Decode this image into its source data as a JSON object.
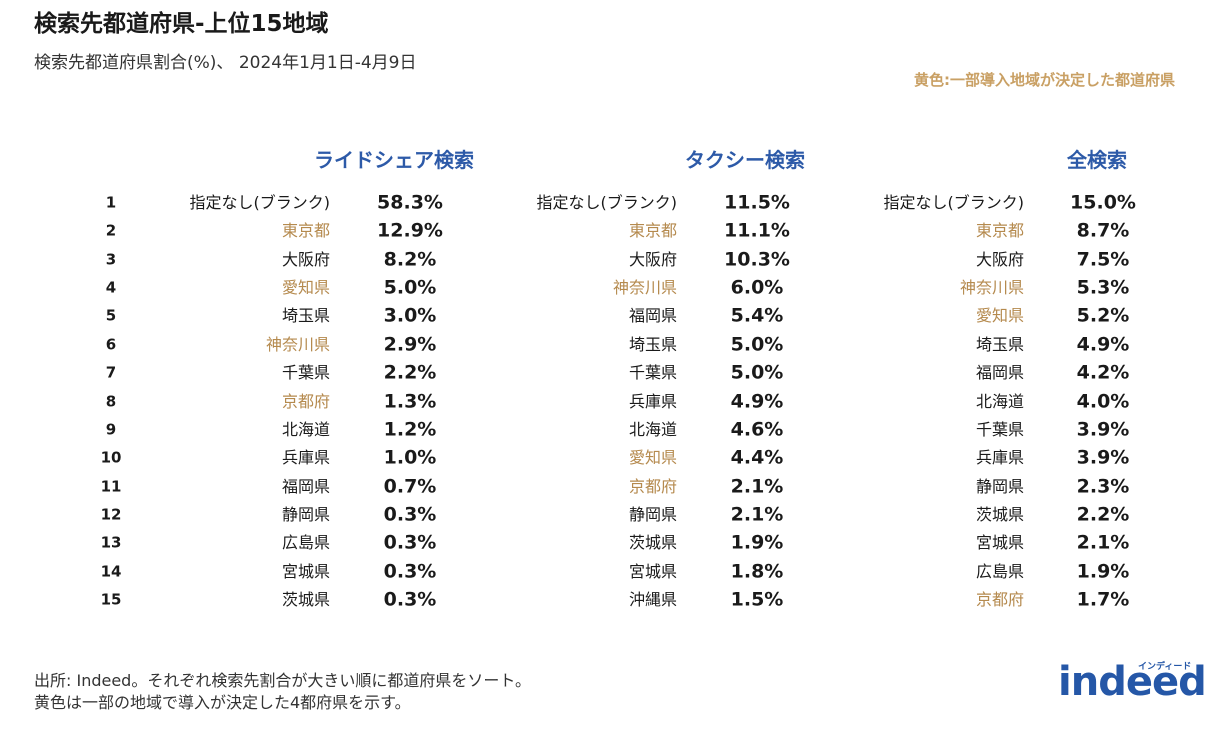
{
  "header": {
    "title": "検索先都道府県-上位15地域",
    "subtitle": "検索先都道府県割合(%)、 2024年1月1日-4月9日",
    "note": "黄色:一部導入地域が決定した都道府県"
  },
  "table": {
    "highlight_color": "#b58a4e",
    "ranks": [
      1,
      2,
      3,
      4,
      5,
      6,
      7,
      8,
      9,
      10,
      11,
      12,
      13,
      14,
      15
    ],
    "columns": [
      {
        "title": "ライドシェア検索",
        "rows": [
          {
            "region": "指定なし(ブランク)",
            "share": "58.3%",
            "highlight": false
          },
          {
            "region": "東京都",
            "share": "12.9%",
            "highlight": true
          },
          {
            "region": "大阪府",
            "share": "8.2%",
            "highlight": false
          },
          {
            "region": "愛知県",
            "share": "5.0%",
            "highlight": true
          },
          {
            "region": "埼玉県",
            "share": "3.0%",
            "highlight": false
          },
          {
            "region": "神奈川県",
            "share": "2.9%",
            "highlight": true
          },
          {
            "region": "千葉県",
            "share": "2.2%",
            "highlight": false
          },
          {
            "region": "京都府",
            "share": "1.3%",
            "highlight": true
          },
          {
            "region": "北海道",
            "share": "1.2%",
            "highlight": false
          },
          {
            "region": "兵庫県",
            "share": "1.0%",
            "highlight": false
          },
          {
            "region": "福岡県",
            "share": "0.7%",
            "highlight": false
          },
          {
            "region": "静岡県",
            "share": "0.3%",
            "highlight": false
          },
          {
            "region": "広島県",
            "share": "0.3%",
            "highlight": false
          },
          {
            "region": "宮城県",
            "share": "0.3%",
            "highlight": false
          },
          {
            "region": "茨城県",
            "share": "0.3%",
            "highlight": false
          }
        ]
      },
      {
        "title": "タクシー検索",
        "rows": [
          {
            "region": "指定なし(ブランク)",
            "share": "11.5%",
            "highlight": false
          },
          {
            "region": "東京都",
            "share": "11.1%",
            "highlight": true
          },
          {
            "region": "大阪府",
            "share": "10.3%",
            "highlight": false
          },
          {
            "region": "神奈川県",
            "share": "6.0%",
            "highlight": true
          },
          {
            "region": "福岡県",
            "share": "5.4%",
            "highlight": false
          },
          {
            "region": "埼玉県",
            "share": "5.0%",
            "highlight": false
          },
          {
            "region": "千葉県",
            "share": "5.0%",
            "highlight": false
          },
          {
            "region": "兵庫県",
            "share": "4.9%",
            "highlight": false
          },
          {
            "region": "北海道",
            "share": "4.6%",
            "highlight": false
          },
          {
            "region": "愛知県",
            "share": "4.4%",
            "highlight": true
          },
          {
            "region": "京都府",
            "share": "2.1%",
            "highlight": true
          },
          {
            "region": "静岡県",
            "share": "2.1%",
            "highlight": false
          },
          {
            "region": "茨城県",
            "share": "1.9%",
            "highlight": false
          },
          {
            "region": "宮城県",
            "share": "1.8%",
            "highlight": false
          },
          {
            "region": "沖縄県",
            "share": "1.5%",
            "highlight": false
          }
        ]
      },
      {
        "title": "全検索",
        "rows": [
          {
            "region": "指定なし(ブランク)",
            "share": "15.0%",
            "highlight": false
          },
          {
            "region": "東京都",
            "share": "8.7%",
            "highlight": true
          },
          {
            "region": "大阪府",
            "share": "7.5%",
            "highlight": false
          },
          {
            "region": "神奈川県",
            "share": "5.3%",
            "highlight": true
          },
          {
            "region": "愛知県",
            "share": "5.2%",
            "highlight": true
          },
          {
            "region": "埼玉県",
            "share": "4.9%",
            "highlight": false
          },
          {
            "region": "福岡県",
            "share": "4.2%",
            "highlight": false
          },
          {
            "region": "北海道",
            "share": "4.0%",
            "highlight": false
          },
          {
            "region": "千葉県",
            "share": "3.9%",
            "highlight": false
          },
          {
            "region": "兵庫県",
            "share": "3.9%",
            "highlight": false
          },
          {
            "region": "静岡県",
            "share": "2.3%",
            "highlight": false
          },
          {
            "region": "茨城県",
            "share": "2.2%",
            "highlight": false
          },
          {
            "region": "宮城県",
            "share": "2.1%",
            "highlight": false
          },
          {
            "region": "広島県",
            "share": "1.9%",
            "highlight": false
          },
          {
            "region": "京都府",
            "share": "1.7%",
            "highlight": true
          }
        ]
      }
    ]
  },
  "footer": {
    "lines": [
      "出所: Indeed。それぞれ検索先割合が大きい順に都道府県をソート。",
      "黄色は一部の地域で導入が決定した4都府県を示す。"
    ],
    "logo": "indeed",
    "logo_sub": "インディード"
  }
}
